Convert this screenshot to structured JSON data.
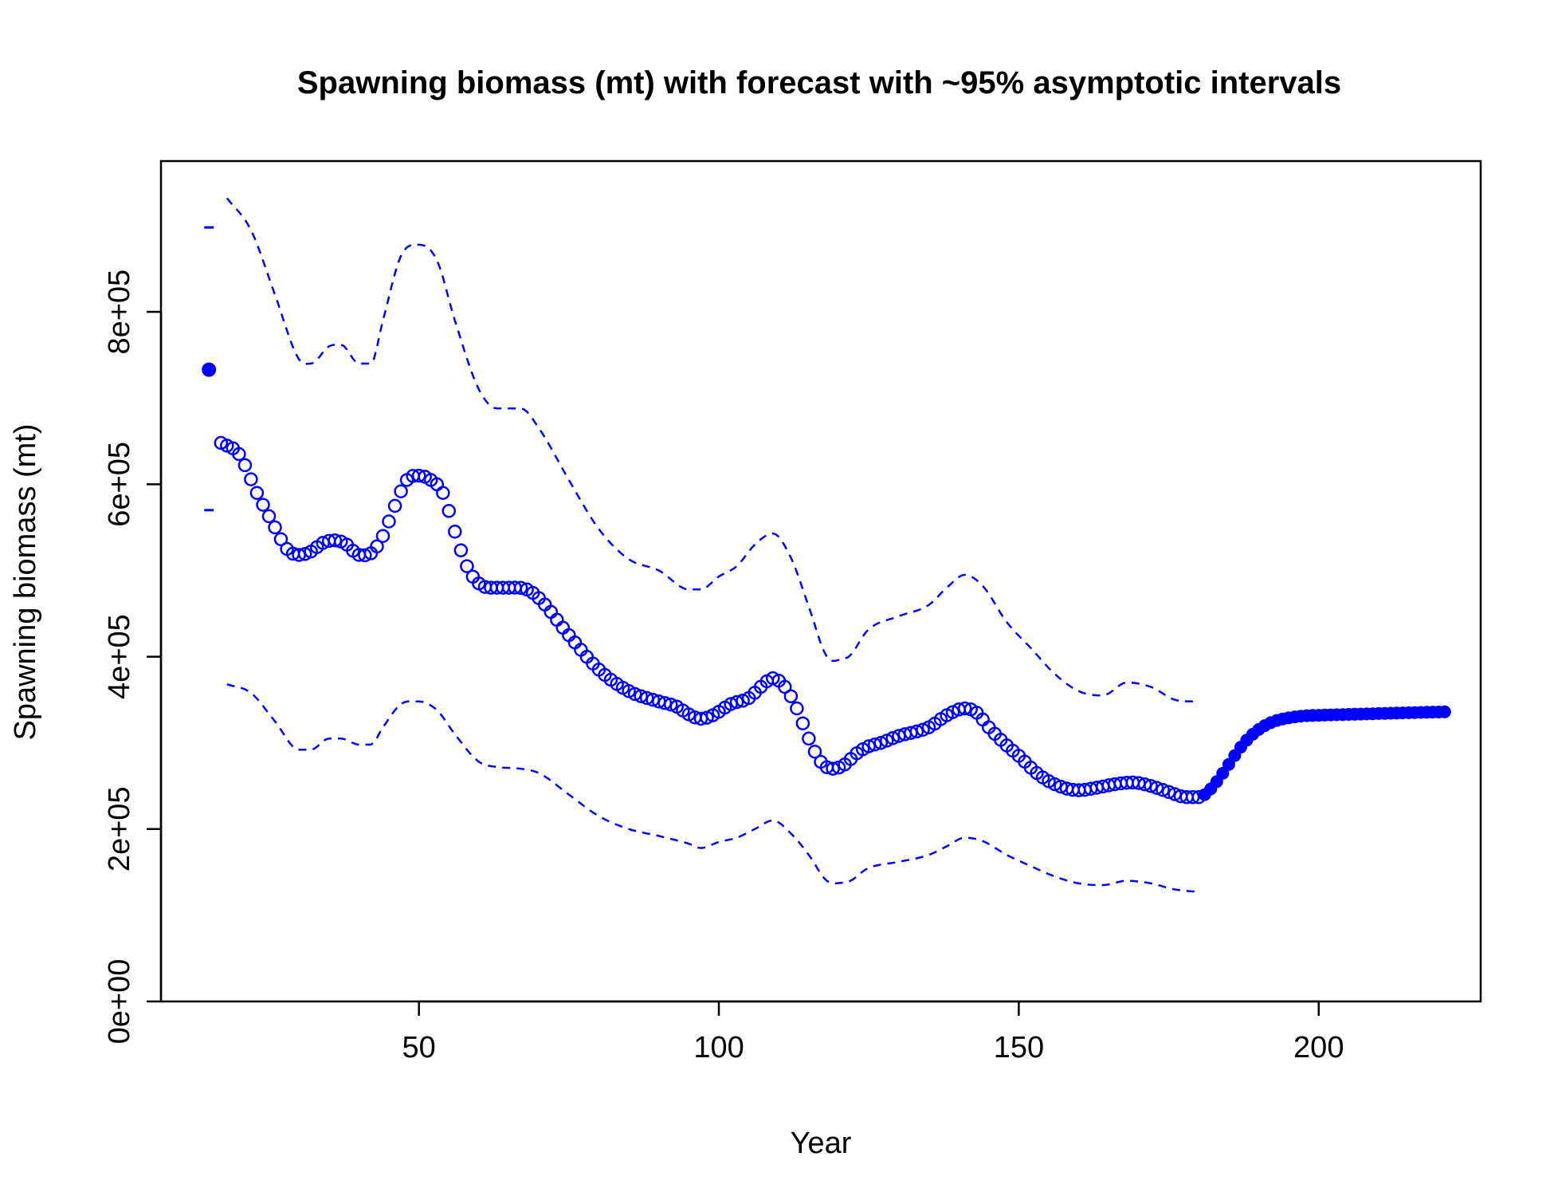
{
  "chart_data": {
    "type": "scatter",
    "title": "Spawning biomass (mt) with forecast with ~95% asymptotic intervals",
    "xlabel": "Year",
    "ylabel": "Spawning biomass (mt)",
    "xlim": [
      7,
      227
    ],
    "ylim": [
      0,
      975000
    ],
    "x_ticks": [
      50,
      100,
      150,
      200
    ],
    "x_tick_labels": [
      "50",
      "100",
      "150",
      "200"
    ],
    "y_ticks": [
      0,
      200000,
      400000,
      600000,
      800000
    ],
    "y_tick_labels": [
      "0e+00",
      "2e+05",
      "4e+05",
      "6e+05",
      "8e+05"
    ],
    "grid": false,
    "legend": "none",
    "colors": {
      "series": "#0000ff",
      "axes": "#000000"
    },
    "virgin": {
      "x": 15,
      "value": 733000,
      "lower": 570000,
      "upper": 898000
    },
    "estimate_knots": {
      "x": [
        17,
        20,
        23,
        26,
        28,
        30,
        32,
        34,
        36,
        38,
        40,
        42,
        44,
        46,
        48,
        50,
        52,
        54,
        56,
        58,
        60,
        62,
        65,
        68,
        70,
        75,
        80,
        85,
        90,
        93,
        95,
        97,
        99,
        102,
        105,
        107,
        109,
        111,
        113,
        115,
        117,
        119,
        121,
        123,
        125,
        127,
        130,
        135,
        138,
        141,
        143,
        145,
        148,
        150,
        153,
        156,
        160,
        163,
        166,
        169,
        172,
        175,
        178,
        180
      ],
      "y": [
        648000,
        635000,
        590000,
        550000,
        525000,
        518000,
        522000,
        532000,
        535000,
        530000,
        518000,
        520000,
        540000,
        575000,
        605000,
        610000,
        605000,
        590000,
        545000,
        505000,
        485000,
        480000,
        480000,
        478000,
        468000,
        425000,
        385000,
        360000,
        348000,
        342000,
        333000,
        328000,
        332000,
        345000,
        352000,
        365000,
        375000,
        365000,
        340000,
        305000,
        278000,
        270000,
        275000,
        288000,
        296000,
        300000,
        308000,
        318000,
        332000,
        340000,
        335000,
        318000,
        297000,
        285000,
        265000,
        252000,
        245000,
        248000,
        252000,
        254000,
        250000,
        243000,
        237000,
        237000
      ]
    },
    "upper_knots": {
      "x": [
        18,
        22,
        26,
        30,
        32,
        35,
        37,
        40,
        42,
        44,
        47,
        50,
        53,
        56,
        60,
        63,
        67,
        70,
        75,
        80,
        85,
        90,
        95,
        97,
        100,
        103,
        106,
        109,
        112,
        115,
        118,
        121,
        125,
        130,
        135,
        138,
        141,
        144,
        148,
        152,
        156,
        160,
        164,
        168,
        172,
        176,
        180
      ],
      "y": [
        932000,
        895000,
        820000,
        745000,
        740000,
        760000,
        762000,
        740000,
        740000,
        790000,
        865000,
        878000,
        860000,
        790000,
        710000,
        688000,
        688000,
        665000,
        605000,
        548000,
        513000,
        500000,
        478000,
        478000,
        493000,
        505000,
        530000,
        543000,
        515000,
        458000,
        400000,
        398000,
        432000,
        447000,
        460000,
        480000,
        495000,
        482000,
        440000,
        410000,
        380000,
        360000,
        355000,
        370000,
        365000,
        350000,
        348000
      ]
    },
    "lower_knots": {
      "x": [
        18,
        22,
        26,
        30,
        32,
        35,
        37,
        40,
        42,
        44,
        47,
        50,
        53,
        56,
        60,
        63,
        67,
        70,
        75,
        80,
        85,
        90,
        95,
        97,
        100,
        103,
        106,
        109,
        112,
        115,
        118,
        121,
        125,
        130,
        135,
        138,
        141,
        144,
        148,
        152,
        156,
        160,
        164,
        168,
        172,
        176,
        180
      ],
      "y": [
        368000,
        358000,
        325000,
        292000,
        292000,
        305000,
        305000,
        298000,
        298000,
        318000,
        345000,
        348000,
        338000,
        310000,
        278000,
        272000,
        270000,
        265000,
        240000,
        215000,
        200000,
        192000,
        183000,
        178000,
        185000,
        190000,
        200000,
        210000,
        195000,
        170000,
        140000,
        138000,
        155000,
        162000,
        170000,
        180000,
        190000,
        186000,
        170000,
        157000,
        145000,
        137000,
        135000,
        140000,
        137000,
        130000,
        127000
      ]
    },
    "forecast_knots": {
      "x": [
        180,
        181,
        183,
        185,
        187,
        189,
        191,
        193,
        195,
        197,
        200,
        205,
        210,
        215,
        221
      ],
      "y": [
        237000,
        240000,
        255000,
        275000,
        295000,
        310000,
        320000,
        326000,
        329000,
        331000,
        332000,
        333000,
        334000,
        335000,
        336000
      ]
    }
  }
}
